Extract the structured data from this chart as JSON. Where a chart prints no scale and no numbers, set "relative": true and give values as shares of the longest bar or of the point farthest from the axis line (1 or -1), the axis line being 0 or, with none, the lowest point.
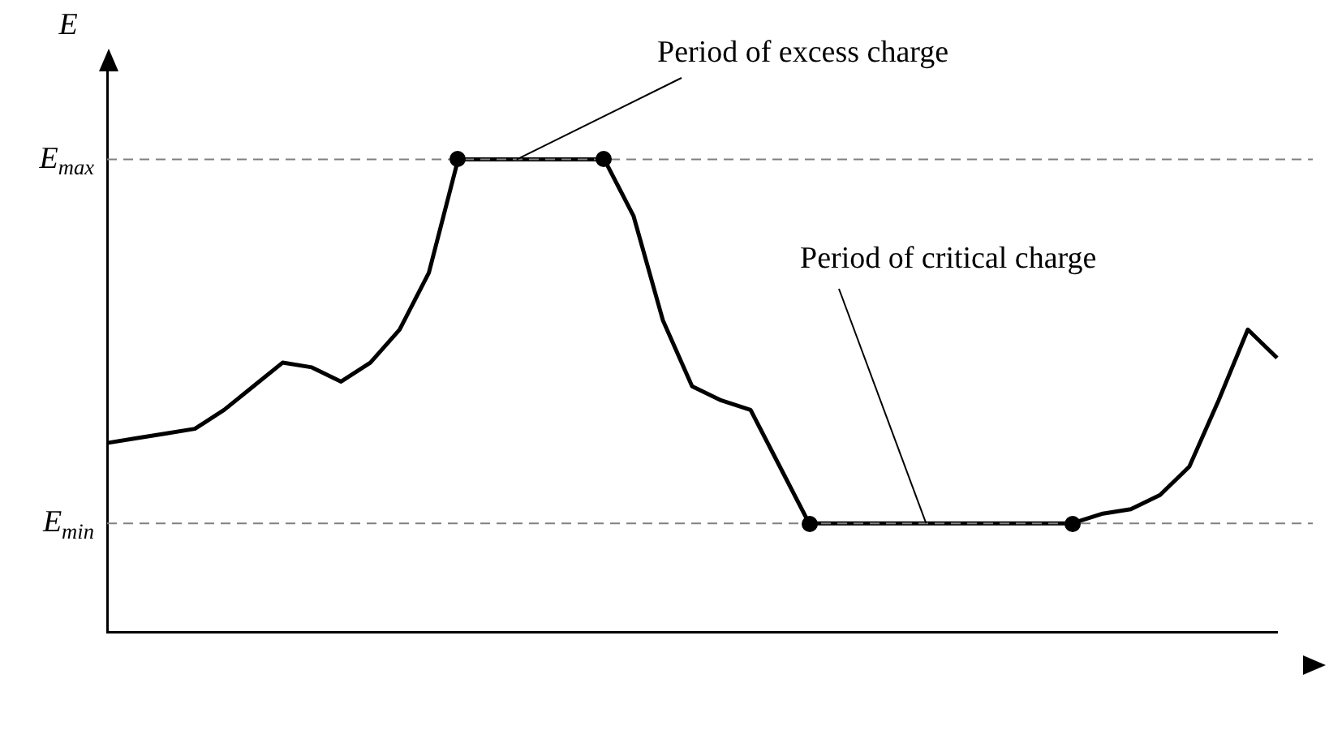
{
  "chart_data": {
    "type": "line",
    "ylabel": "E",
    "relative": true,
    "grid": false,
    "legend": false,
    "categories": [
      null,
      null,
      null,
      null,
      null,
      null,
      null,
      null,
      null,
      null,
      null,
      null,
      null,
      null,
      null,
      null,
      null,
      null,
      null,
      null,
      null,
      null,
      null,
      null,
      null,
      null,
      null,
      null,
      null,
      null,
      null,
      null,
      null,
      null,
      null,
      null,
      null,
      null,
      null,
      null,
      null
    ],
    "series": [
      {
        "color": "#000000",
        "marker": "none",
        "values": [
          0.4,
          0.41,
          0.42,
          0.43,
          0.47,
          0.52,
          0.57,
          0.56,
          0.53,
          0.57,
          0.64,
          0.76,
          1,
          1,
          1,
          1,
          1,
          1,
          0.88,
          0.66,
          0.52,
          0.49,
          0.47,
          0.35,
          0.23,
          0.23,
          0.23,
          0.23,
          0.23,
          0.23,
          0.23,
          0.23,
          0.23,
          0.23,
          0.25,
          0.26,
          0.29,
          0.35,
          0.49,
          0.64,
          0.58
        ]
      }
    ],
    "ref_lines": [
      {
        "axis": "y",
        "value": 1,
        "label": "E$_{max}$",
        "color": "#808080",
        "line_style": "dashed"
      },
      {
        "axis": "y",
        "value": 0.23,
        "label": "E$_{min}$",
        "color": "#808080",
        "line_style": "dashed"
      }
    ],
    "annotations": [
      "Period of excess charge",
      "Period of critical charge"
    ]
  }
}
